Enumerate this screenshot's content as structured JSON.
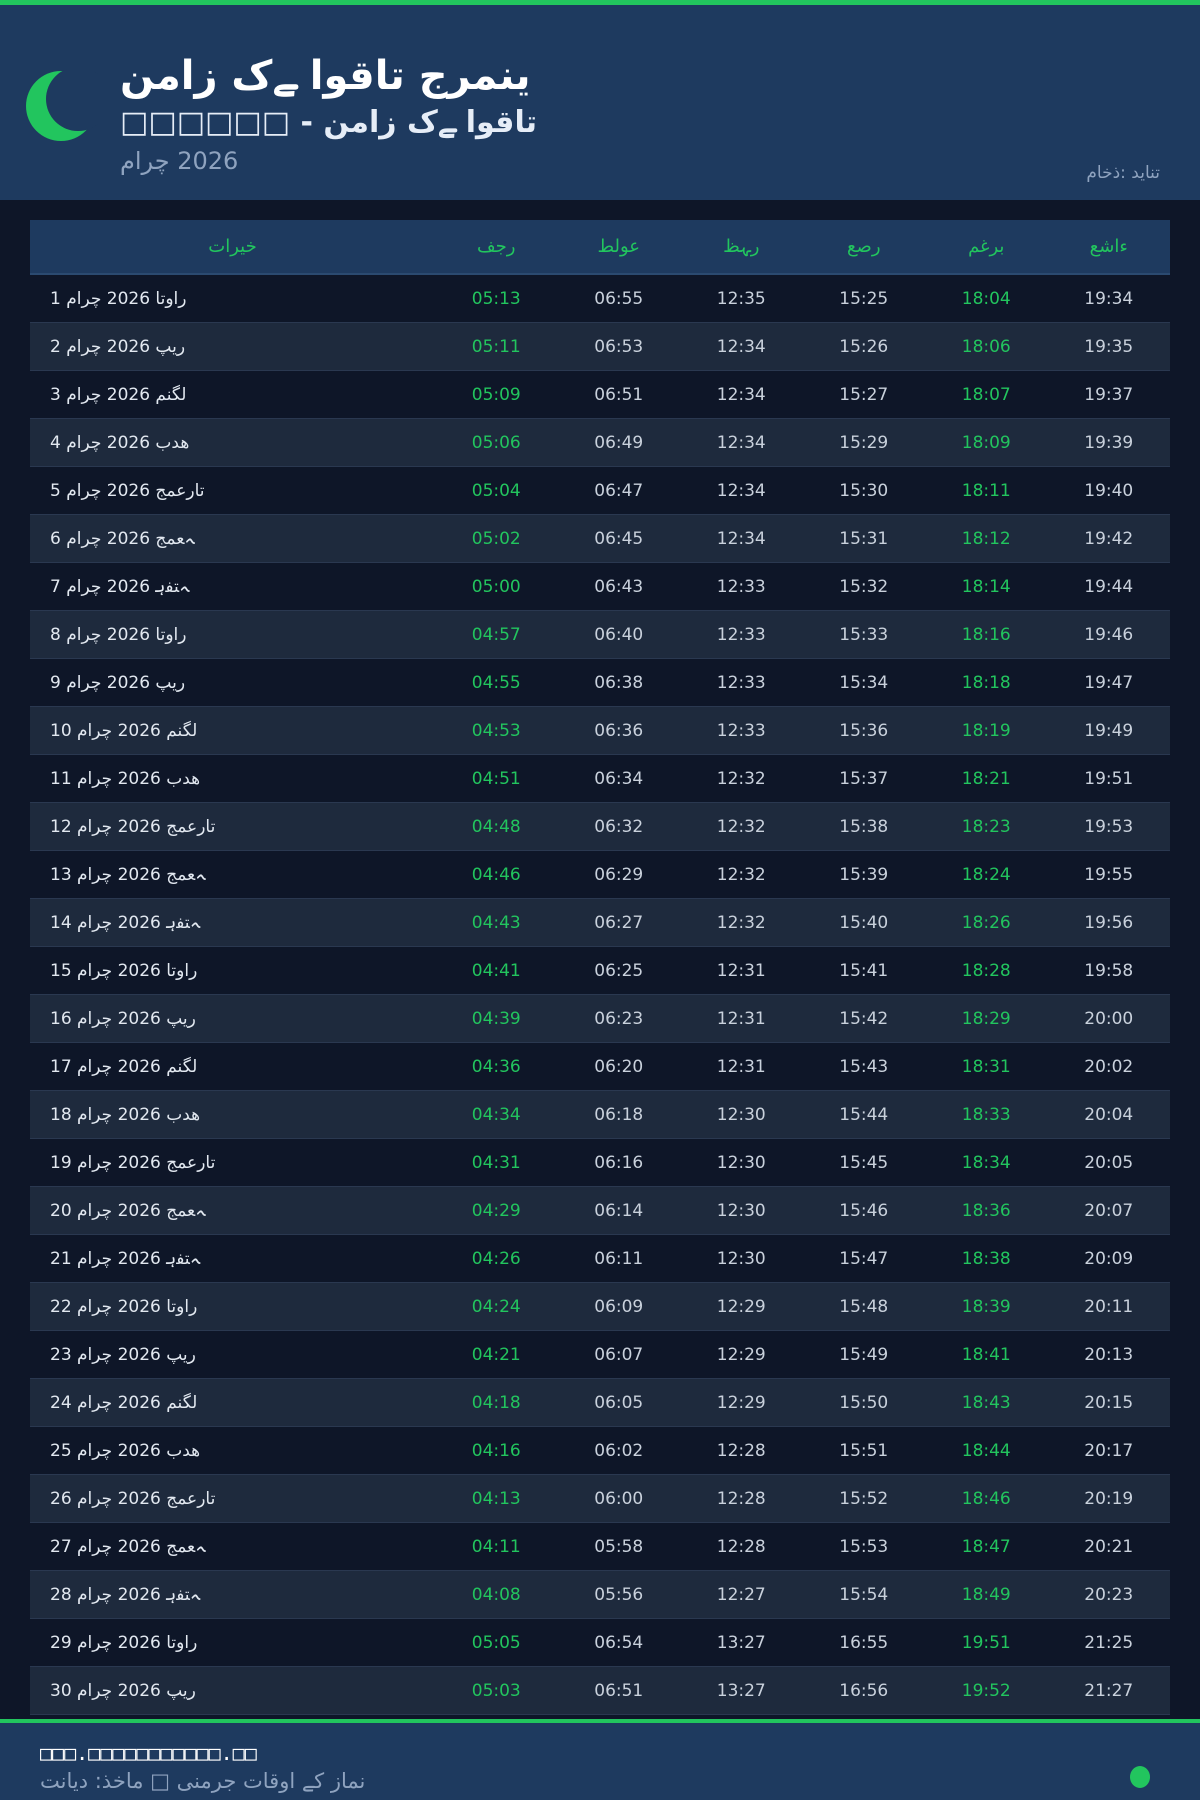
{
  "header": {
    "title": "نماز کے اوقات جرمنی",
    "subtitle": "□□□□□□ - نماز کے اوقات",
    "month": "مارچ 2026",
    "source": "ماخذ: دیانت",
    "icon": "crescent-moon-icon"
  },
  "colors": {
    "accent": "#22c55e",
    "header_bg": "#1e3a5f",
    "page_bg": "#0e1628"
  },
  "table": {
    "columns": [
      "تاریخ",
      "فجر",
      "طلوع",
      "ظہر",
      "عصر",
      "مغرب",
      "عشاء"
    ],
    "rows": [
      [
        "1 مارچ 2026 اتوار",
        "05:13",
        "06:55",
        "12:35",
        "15:25",
        "18:04",
        "19:34"
      ],
      [
        "2 مارچ 2026 پیر",
        "05:11",
        "06:53",
        "12:34",
        "15:26",
        "18:06",
        "19:35"
      ],
      [
        "3 مارچ 2026 منگل",
        "05:09",
        "06:51",
        "12:34",
        "15:27",
        "18:07",
        "19:37"
      ],
      [
        "4 مارچ 2026 بدھ",
        "05:06",
        "06:49",
        "12:34",
        "15:29",
        "18:09",
        "19:39"
      ],
      [
        "5 مارچ 2026 جمعرات",
        "05:04",
        "06:47",
        "12:34",
        "15:30",
        "18:11",
        "19:40"
      ],
      [
        "6 مارچ 2026 جمعہ",
        "05:02",
        "06:45",
        "12:34",
        "15:31",
        "18:12",
        "19:42"
      ],
      [
        "7 مارچ 2026 ہفتہ",
        "05:00",
        "06:43",
        "12:33",
        "15:32",
        "18:14",
        "19:44"
      ],
      [
        "8 مارچ 2026 اتوار",
        "04:57",
        "06:40",
        "12:33",
        "15:33",
        "18:16",
        "19:46"
      ],
      [
        "9 مارچ 2026 پیر",
        "04:55",
        "06:38",
        "12:33",
        "15:34",
        "18:18",
        "19:47"
      ],
      [
        "10 مارچ 2026 منگل",
        "04:53",
        "06:36",
        "12:33",
        "15:36",
        "18:19",
        "19:49"
      ],
      [
        "11 مارچ 2026 بدھ",
        "04:51",
        "06:34",
        "12:32",
        "15:37",
        "18:21",
        "19:51"
      ],
      [
        "12 مارچ 2026 جمعرات",
        "04:48",
        "06:32",
        "12:32",
        "15:38",
        "18:23",
        "19:53"
      ],
      [
        "13 مارچ 2026 جمعہ",
        "04:46",
        "06:29",
        "12:32",
        "15:39",
        "18:24",
        "19:55"
      ],
      [
        "14 مارچ 2026 ہفتہ",
        "04:43",
        "06:27",
        "12:32",
        "15:40",
        "18:26",
        "19:56"
      ],
      [
        "15 مارچ 2026 اتوار",
        "04:41",
        "06:25",
        "12:31",
        "15:41",
        "18:28",
        "19:58"
      ],
      [
        "16 مارچ 2026 پیر",
        "04:39",
        "06:23",
        "12:31",
        "15:42",
        "18:29",
        "20:00"
      ],
      [
        "17 مارچ 2026 منگل",
        "04:36",
        "06:20",
        "12:31",
        "15:43",
        "18:31",
        "20:02"
      ],
      [
        "18 مارچ 2026 بدھ",
        "04:34",
        "06:18",
        "12:30",
        "15:44",
        "18:33",
        "20:04"
      ],
      [
        "19 مارچ 2026 جمعرات",
        "04:31",
        "06:16",
        "12:30",
        "15:45",
        "18:34",
        "20:05"
      ],
      [
        "20 مارچ 2026 جمعہ",
        "04:29",
        "06:14",
        "12:30",
        "15:46",
        "18:36",
        "20:07"
      ],
      [
        "21 مارچ 2026 ہفتہ",
        "04:26",
        "06:11",
        "12:30",
        "15:47",
        "18:38",
        "20:09"
      ],
      [
        "22 مارچ 2026 اتوار",
        "04:24",
        "06:09",
        "12:29",
        "15:48",
        "18:39",
        "20:11"
      ],
      [
        "23 مارچ 2026 پیر",
        "04:21",
        "06:07",
        "12:29",
        "15:49",
        "18:41",
        "20:13"
      ],
      [
        "24 مارچ 2026 منگل",
        "04:18",
        "06:05",
        "12:29",
        "15:50",
        "18:43",
        "20:15"
      ],
      [
        "25 مارچ 2026 بدھ",
        "04:16",
        "06:02",
        "12:28",
        "15:51",
        "18:44",
        "20:17"
      ],
      [
        "26 مارچ 2026 جمعرات",
        "04:13",
        "06:00",
        "12:28",
        "15:52",
        "18:46",
        "20:19"
      ],
      [
        "27 مارچ 2026 جمعہ",
        "04:11",
        "05:58",
        "12:28",
        "15:53",
        "18:47",
        "20:21"
      ],
      [
        "28 مارچ 2026 ہفتہ",
        "04:08",
        "05:56",
        "12:27",
        "15:54",
        "18:49",
        "20:23"
      ],
      [
        "29 مارچ 2026 اتوار",
        "05:05",
        "06:54",
        "13:27",
        "16:55",
        "19:51",
        "21:25"
      ],
      [
        "30 مارچ 2026 پیر",
        "05:03",
        "06:51",
        "13:27",
        "16:56",
        "19:52",
        "21:27"
      ]
    ]
  },
  "footer": {
    "url": "□□□.□□□□□□□□□□□.□□",
    "text": "نماز کے اوقات جرمنی □ ماخذ: دیانت"
  }
}
